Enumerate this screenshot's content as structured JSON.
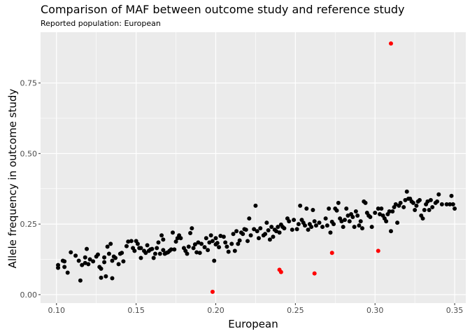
{
  "chart_data": {
    "type": "scatter",
    "title": "Comparison of MAF between outcome study and reference study",
    "subtitle": "Reported population: European",
    "xlabel": "European",
    "ylabel": "Allele frequency in outcome study",
    "xlim": [
      0.09,
      0.357
    ],
    "ylim": [
      -0.03,
      0.93
    ],
    "xticks": [
      0.1,
      0.15,
      0.2,
      0.25,
      0.3,
      0.35
    ],
    "xtick_labels": [
      "0.10",
      "0.15",
      "0.20",
      "0.25",
      "0.30",
      "0.35"
    ],
    "yticks": [
      0.0,
      0.25,
      0.5,
      0.75
    ],
    "ytick_labels": [
      "0.00",
      "0.25",
      "0.50",
      "0.75"
    ],
    "grid": true,
    "colors": {
      "normal": "#000000",
      "outlier": "#ff0000",
      "panel": "#ebebeb",
      "grid": "#ffffff"
    },
    "series": [
      {
        "color": "#000000",
        "points": [
          [
            0.101,
            0.105
          ],
          [
            0.101,
            0.095
          ],
          [
            0.104,
            0.12
          ],
          [
            0.105,
            0.118
          ],
          [
            0.105,
            0.098
          ],
          [
            0.107,
            0.078
          ],
          [
            0.109,
            0.15
          ],
          [
            0.112,
            0.138
          ],
          [
            0.114,
            0.12
          ],
          [
            0.115,
            0.05
          ],
          [
            0.116,
            0.105
          ],
          [
            0.118,
            0.132
          ],
          [
            0.118,
            0.112
          ],
          [
            0.119,
            0.162
          ],
          [
            0.12,
            0.108
          ],
          [
            0.121,
            0.125
          ],
          [
            0.123,
            0.118
          ],
          [
            0.125,
            0.135
          ],
          [
            0.126,
            0.142
          ],
          [
            0.127,
            0.098
          ],
          [
            0.128,
            0.092
          ],
          [
            0.128,
            0.06
          ],
          [
            0.13,
            0.132
          ],
          [
            0.13,
            0.115
          ],
          [
            0.131,
            0.065
          ],
          [
            0.132,
            0.17
          ],
          [
            0.133,
            0.145
          ],
          [
            0.134,
            0.18
          ],
          [
            0.135,
            0.12
          ],
          [
            0.135,
            0.058
          ],
          [
            0.136,
            0.135
          ],
          [
            0.137,
            0.13
          ],
          [
            0.139,
            0.108
          ],
          [
            0.14,
            0.145
          ],
          [
            0.141,
            0.148
          ],
          [
            0.142,
            0.118
          ],
          [
            0.144,
            0.172
          ],
          [
            0.145,
            0.188
          ],
          [
            0.147,
            0.19
          ],
          [
            0.148,
            0.165
          ],
          [
            0.149,
            0.155
          ],
          [
            0.15,
            0.19
          ],
          [
            0.151,
            0.18
          ],
          [
            0.152,
            0.165
          ],
          [
            0.153,
            0.165
          ],
          [
            0.153,
            0.13
          ],
          [
            0.155,
            0.155
          ],
          [
            0.156,
            0.148
          ],
          [
            0.157,
            0.175
          ],
          [
            0.158,
            0.155
          ],
          [
            0.159,
            0.16
          ],
          [
            0.16,
            0.162
          ],
          [
            0.161,
            0.13
          ],
          [
            0.162,
            0.145
          ],
          [
            0.163,
            0.165
          ],
          [
            0.164,
            0.185
          ],
          [
            0.165,
            0.145
          ],
          [
            0.166,
            0.21
          ],
          [
            0.167,
            0.195
          ],
          [
            0.167,
            0.158
          ],
          [
            0.168,
            0.145
          ],
          [
            0.169,
            0.148
          ],
          [
            0.17,
            0.15
          ],
          [
            0.171,
            0.155
          ],
          [
            0.172,
            0.16
          ],
          [
            0.173,
            0.22
          ],
          [
            0.174,
            0.16
          ],
          [
            0.175,
            0.188
          ],
          [
            0.176,
            0.2
          ],
          [
            0.177,
            0.21
          ],
          [
            0.178,
            0.2
          ],
          [
            0.18,
            0.165
          ],
          [
            0.181,
            0.155
          ],
          [
            0.182,
            0.145
          ],
          [
            0.183,
            0.17
          ],
          [
            0.184,
            0.218
          ],
          [
            0.185,
            0.235
          ],
          [
            0.186,
            0.165
          ],
          [
            0.187,
            0.178
          ],
          [
            0.188,
            0.15
          ],
          [
            0.189,
            0.185
          ],
          [
            0.19,
            0.148
          ],
          [
            0.191,
            0.18
          ],
          [
            0.193,
            0.168
          ],
          [
            0.194,
            0.2
          ],
          [
            0.195,
            0.158
          ],
          [
            0.196,
            0.185
          ],
          [
            0.197,
            0.21
          ],
          [
            0.198,
            0.19
          ],
          [
            0.199,
            0.12
          ],
          [
            0.2,
            0.2
          ],
          [
            0.2,
            0.178
          ],
          [
            0.201,
            0.183
          ],
          [
            0.202,
            0.168
          ],
          [
            0.203,
            0.208
          ],
          [
            0.205,
            0.205
          ],
          [
            0.206,
            0.185
          ],
          [
            0.207,
            0.17
          ],
          [
            0.208,
            0.152
          ],
          [
            0.21,
            0.18
          ],
          [
            0.211,
            0.215
          ],
          [
            0.212,
            0.155
          ],
          [
            0.213,
            0.225
          ],
          [
            0.214,
            0.18
          ],
          [
            0.215,
            0.192
          ],
          [
            0.216,
            0.22
          ],
          [
            0.217,
            0.215
          ],
          [
            0.218,
            0.232
          ],
          [
            0.219,
            0.23
          ],
          [
            0.22,
            0.19
          ],
          [
            0.221,
            0.27
          ],
          [
            0.222,
            0.21
          ],
          [
            0.224,
            0.232
          ],
          [
            0.225,
            0.315
          ],
          [
            0.226,
            0.225
          ],
          [
            0.227,
            0.2
          ],
          [
            0.228,
            0.235
          ],
          [
            0.23,
            0.21
          ],
          [
            0.231,
            0.215
          ],
          [
            0.232,
            0.255
          ],
          [
            0.233,
            0.228
          ],
          [
            0.234,
            0.195
          ],
          [
            0.235,
            0.24
          ],
          [
            0.236,
            0.205
          ],
          [
            0.237,
            0.23
          ],
          [
            0.238,
            0.225
          ],
          [
            0.239,
            0.24
          ],
          [
            0.24,
            0.22
          ],
          [
            0.241,
            0.248
          ],
          [
            0.242,
            0.24
          ],
          [
            0.243,
            0.235
          ],
          [
            0.245,
            0.27
          ],
          [
            0.246,
            0.26
          ],
          [
            0.248,
            0.23
          ],
          [
            0.249,
            0.265
          ],
          [
            0.251,
            0.232
          ],
          [
            0.252,
            0.25
          ],
          [
            0.253,
            0.315
          ],
          [
            0.254,
            0.265
          ],
          [
            0.255,
            0.255
          ],
          [
            0.256,
            0.245
          ],
          [
            0.257,
            0.305
          ],
          [
            0.258,
            0.23
          ],
          [
            0.259,
            0.25
          ],
          [
            0.26,
            0.24
          ],
          [
            0.261,
            0.3
          ],
          [
            0.262,
            0.26
          ],
          [
            0.263,
            0.245
          ],
          [
            0.265,
            0.255
          ],
          [
            0.267,
            0.24
          ],
          [
            0.269,
            0.27
          ],
          [
            0.27,
            0.245
          ],
          [
            0.271,
            0.305
          ],
          [
            0.272,
            0.22
          ],
          [
            0.273,
            0.258
          ],
          [
            0.274,
            0.25
          ],
          [
            0.275,
            0.305
          ],
          [
            0.276,
            0.298
          ],
          [
            0.277,
            0.325
          ],
          [
            0.278,
            0.27
          ],
          [
            0.279,
            0.26
          ],
          [
            0.28,
            0.24
          ],
          [
            0.281,
            0.265
          ],
          [
            0.282,
            0.305
          ],
          [
            0.283,
            0.28
          ],
          [
            0.284,
            0.26
          ],
          [
            0.285,
            0.285
          ],
          [
            0.286,
            0.275
          ],
          [
            0.287,
            0.24
          ],
          [
            0.288,
            0.295
          ],
          [
            0.289,
            0.28
          ],
          [
            0.29,
            0.245
          ],
          [
            0.291,
            0.26
          ],
          [
            0.292,
            0.235
          ],
          [
            0.293,
            0.33
          ],
          [
            0.294,
            0.325
          ],
          [
            0.295,
            0.29
          ],
          [
            0.296,
            0.28
          ],
          [
            0.297,
            0.275
          ],
          [
            0.298,
            0.24
          ],
          [
            0.3,
            0.29
          ],
          [
            0.302,
            0.305
          ],
          [
            0.303,
            0.285
          ],
          [
            0.304,
            0.305
          ],
          [
            0.305,
            0.28
          ],
          [
            0.306,
            0.27
          ],
          [
            0.307,
            0.26
          ],
          [
            0.308,
            0.285
          ],
          [
            0.309,
            0.295
          ],
          [
            0.31,
            0.225
          ],
          [
            0.311,
            0.295
          ],
          [
            0.312,
            0.31
          ],
          [
            0.313,
            0.32
          ],
          [
            0.314,
            0.255
          ],
          [
            0.315,
            0.315
          ],
          [
            0.316,
            0.325
          ],
          [
            0.318,
            0.31
          ],
          [
            0.319,
            0.335
          ],
          [
            0.32,
            0.365
          ],
          [
            0.321,
            0.34
          ],
          [
            0.322,
            0.34
          ],
          [
            0.323,
            0.33
          ],
          [
            0.324,
            0.325
          ],
          [
            0.325,
            0.3
          ],
          [
            0.326,
            0.315
          ],
          [
            0.327,
            0.33
          ],
          [
            0.328,
            0.335
          ],
          [
            0.329,
            0.28
          ],
          [
            0.33,
            0.27
          ],
          [
            0.331,
            0.3
          ],
          [
            0.332,
            0.32
          ],
          [
            0.333,
            0.33
          ],
          [
            0.334,
            0.3
          ],
          [
            0.335,
            0.335
          ],
          [
            0.336,
            0.31
          ],
          [
            0.338,
            0.325
          ],
          [
            0.339,
            0.33
          ],
          [
            0.34,
            0.355
          ],
          [
            0.342,
            0.32
          ],
          [
            0.345,
            0.32
          ],
          [
            0.347,
            0.32
          ],
          [
            0.348,
            0.35
          ],
          [
            0.349,
            0.32
          ],
          [
            0.35,
            0.305
          ]
        ]
      },
      {
        "color": "#ff0000",
        "points": [
          [
            0.198,
            0.01
          ],
          [
            0.24,
            0.088
          ],
          [
            0.241,
            0.08
          ],
          [
            0.262,
            0.075
          ],
          [
            0.273,
            0.148
          ],
          [
            0.302,
            0.155
          ],
          [
            0.31,
            0.89
          ]
        ]
      }
    ]
  }
}
